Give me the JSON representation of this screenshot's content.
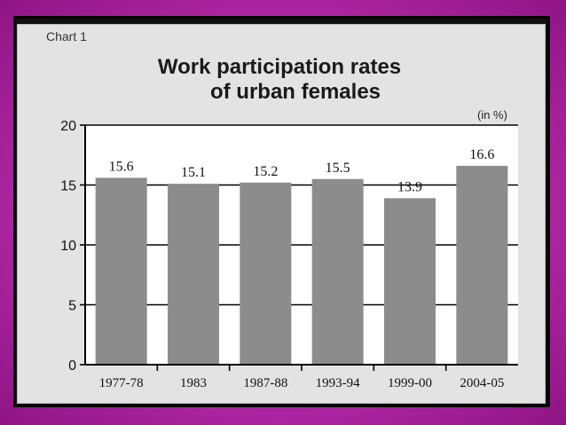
{
  "chart_data": {
    "type": "bar",
    "label": "Chart 1",
    "title_lines": [
      "Work participation rates",
      "of urban females"
    ],
    "unit": "(in %)",
    "categories": [
      "1977-78",
      "1983",
      "1987-88",
      "1993-94",
      "1999-00",
      "2004-05"
    ],
    "values": [
      15.6,
      15.1,
      15.2,
      15.5,
      13.9,
      16.6
    ],
    "data_labels": [
      "15.6",
      "15.1",
      "15.2",
      "15.5",
      "13.9",
      "16.6"
    ],
    "yticks": [
      0,
      5,
      10,
      15,
      20
    ],
    "ylim": [
      0,
      20
    ],
    "grid": true,
    "bar_color": "#8c8c8c"
  }
}
